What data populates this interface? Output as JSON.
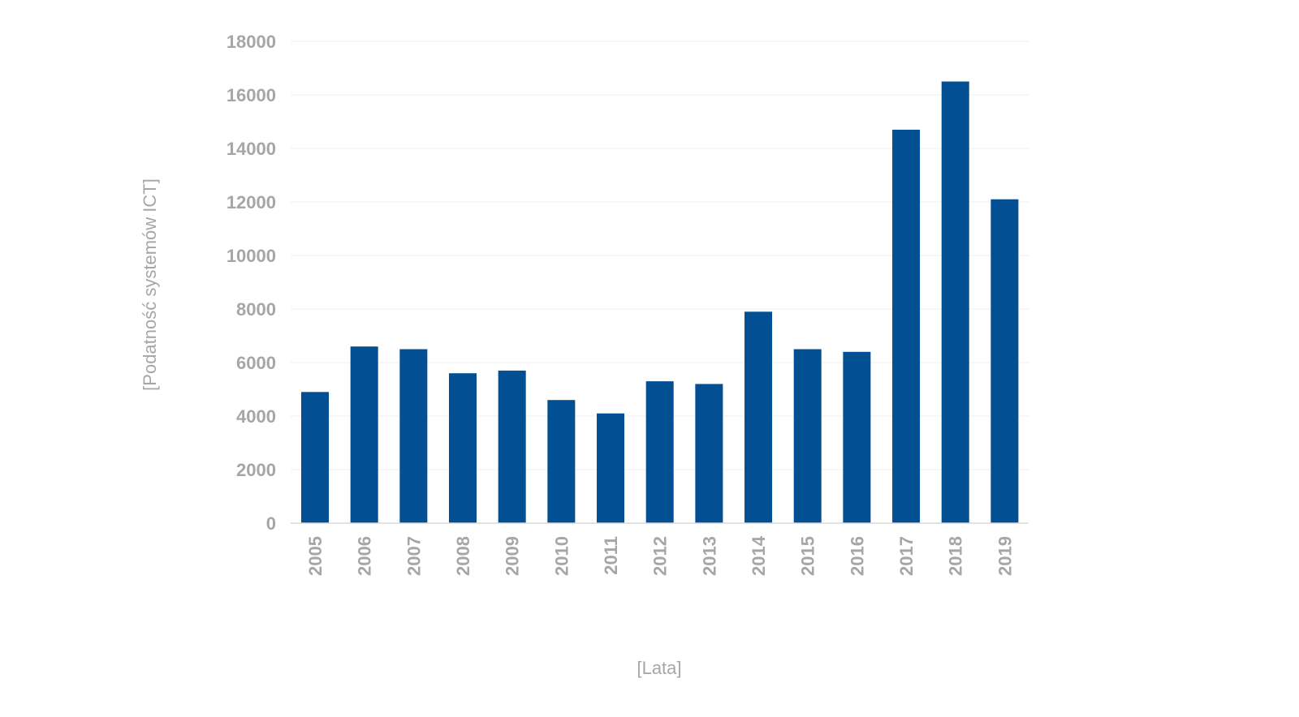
{
  "chart_data": {
    "type": "bar",
    "categories": [
      "2005",
      "2006",
      "2007",
      "2008",
      "2009",
      "2010",
      "2011",
      "2012",
      "2013",
      "2014",
      "2015",
      "2016",
      "2017",
      "2018",
      "2019"
    ],
    "values": [
      4900,
      6600,
      6500,
      5600,
      5700,
      4600,
      4100,
      5300,
      5200,
      7900,
      6500,
      6400,
      14700,
      16500,
      12100
    ],
    "xlabel": "[Lata]",
    "ylabel": "[Podatność systemów ICT]",
    "ylim": [
      0,
      18000
    ],
    "yticks": [
      0,
      2000,
      4000,
      6000,
      8000,
      10000,
      12000,
      14000,
      16000,
      18000
    ],
    "grid": true,
    "bar_color": "#034f93"
  }
}
